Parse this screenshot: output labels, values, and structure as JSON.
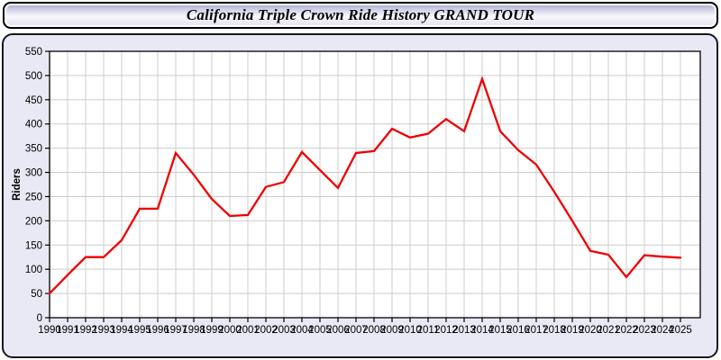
{
  "header": {
    "title": "California Triple Crown Ride History GRAND TOUR"
  },
  "colors": {
    "line": "#ee0000",
    "panel_background": "#e9e9f6",
    "plot_background": "#ffffff",
    "gridline": "#cccccc",
    "axis_border": "#000000",
    "text": "#000000"
  },
  "chart_data": {
    "type": "line",
    "title": "California Triple Crown Ride History GRAND TOUR",
    "xlabel": "",
    "ylabel": "Riders",
    "ylim": [
      0,
      550
    ],
    "ytick_step": 50,
    "grid": true,
    "legend_position": "none",
    "line_color": "#ee0000",
    "categories": [
      1990,
      1991,
      1992,
      1993,
      1994,
      1995,
      1996,
      1997,
      1998,
      1999,
      2000,
      2001,
      2002,
      2003,
      2004,
      2005,
      2006,
      2007,
      2008,
      2009,
      2010,
      2011,
      2012,
      2013,
      2014,
      2015,
      2016,
      2017,
      2018,
      2019,
      2020,
      2021,
      2022,
      2023,
      2024,
      2025
    ],
    "values": [
      50,
      88,
      125,
      125,
      160,
      225,
      225,
      340,
      295,
      245,
      210,
      212,
      270,
      280,
      342,
      305,
      268,
      340,
      344,
      390,
      372,
      380,
      410,
      385,
      493,
      385,
      346,
      316,
      260,
      200,
      138,
      130,
      84,
      129,
      126,
      124
    ]
  }
}
